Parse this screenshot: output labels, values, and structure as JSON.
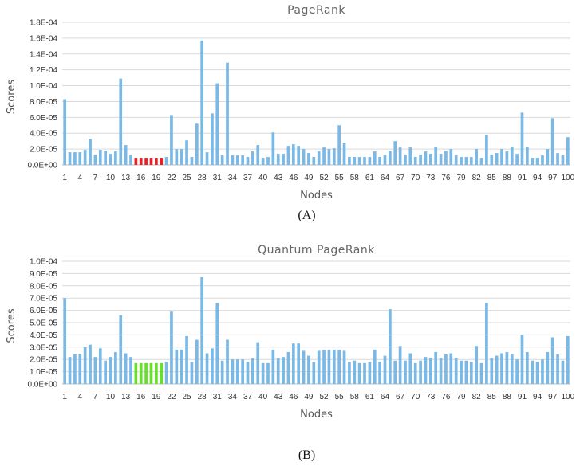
{
  "chart_data": [
    {
      "type": "bar",
      "title": "PageRank",
      "xlabel": "Nodes",
      "ylabel": "Scores",
      "panel_label": "(A)",
      "ylim": [
        0,
        0.00018
      ],
      "yticks": [
        "0.0E+00",
        "2.0E-05",
        "4.0E-05",
        "6.0E-05",
        "8.0E-05",
        "1.0E-04",
        "1.2E-04",
        "1.4E-04",
        "1.6E-04",
        "1.8E-04"
      ],
      "xtick_labels": [
        "1",
        "4",
        "7",
        "10",
        "13",
        "16",
        "19",
        "22",
        "25",
        "28",
        "31",
        "34",
        "37",
        "40",
        "43",
        "46",
        "49",
        "52",
        "55",
        "58",
        "61",
        "64",
        "67",
        "70",
        "73",
        "76",
        "79",
        "82",
        "85",
        "88",
        "91",
        "94",
        "97",
        "100"
      ],
      "grid": true,
      "bar_color": "#7ab8e6",
      "highlight_color": "#e8202a",
      "highlight_nodes": [
        15,
        16,
        17,
        18,
        19,
        20
      ],
      "values": [
        8.3e-05,
        1.6e-05,
        1.6e-05,
        1.6e-05,
        1.9e-05,
        3.3e-05,
        1.3e-05,
        1.9e-05,
        1.8e-05,
        1.4e-05,
        1.7e-05,
        0.000109,
        2.5e-05,
        1.2e-05,
        9e-06,
        9e-06,
        9e-06,
        9e-06,
        9e-06,
        9e-06,
        1e-05,
        6.3e-05,
        2e-05,
        2e-05,
        3.1e-05,
        1e-05,
        5.2e-05,
        0.000157,
        1.6e-05,
        6.5e-05,
        0.000103,
        1.2e-05,
        0.000129,
        1.2e-05,
        1.2e-05,
        1.2e-05,
        1e-05,
        1.7e-05,
        2.5e-05,
        9e-06,
        1e-05,
        4.1e-05,
        1.4e-05,
        1.4e-05,
        2.4e-05,
        2.6e-05,
        2.4e-05,
        2e-05,
        1.5e-05,
        1e-05,
        1.7e-05,
        2.2e-05,
        2e-05,
        2.1e-05,
        5e-05,
        2.8e-05,
        1e-05,
        1e-05,
        1e-05,
        1e-05,
        1e-05,
        1.7e-05,
        1e-05,
        1.3e-05,
        1.8e-05,
        3e-05,
        2.2e-05,
        1.2e-05,
        2.2e-05,
        1e-05,
        1.3e-05,
        1.7e-05,
        1.4e-05,
        2.3e-05,
        1.4e-05,
        1.8e-05,
        2e-05,
        1.2e-05,
        1e-05,
        1e-05,
        1e-05,
        2e-05,
        9e-06,
        3.8e-05,
        1.3e-05,
        1.5e-05,
        2e-05,
        1.7e-05,
        2.3e-05,
        1.4e-05,
        6.6e-05,
        2.3e-05,
        9e-06,
        9e-06,
        1.2e-05,
        2e-05,
        5.9e-05,
        1.5e-05,
        1.2e-05,
        3.5e-05
      ]
    },
    {
      "type": "bar",
      "title": "Quantum PageRank",
      "xlabel": "Nodes",
      "ylabel": "Scores",
      "panel_label": "(B)",
      "ylim": [
        0,
        0.0001
      ],
      "yticks": [
        "0.0E+00",
        "1.0E-05",
        "2.0E-05",
        "3.0E-05",
        "4.0E-05",
        "5.0E-05",
        "6.0E-05",
        "7.0E-05",
        "8.0E-05",
        "9.0E-05",
        "1.0E-04"
      ],
      "xtick_labels": [
        "1",
        "4",
        "7",
        "10",
        "13",
        "16",
        "19",
        "22",
        "25",
        "28",
        "31",
        "34",
        "37",
        "40",
        "43",
        "46",
        "49",
        "52",
        "55",
        "58",
        "61",
        "64",
        "67",
        "70",
        "73",
        "76",
        "79",
        "82",
        "85",
        "88",
        "91",
        "94",
        "97",
        "100"
      ],
      "grid": true,
      "bar_color": "#7ab8e6",
      "highlight_color": "#66e02a",
      "highlight_nodes": [
        15,
        16,
        17,
        18,
        19,
        20
      ],
      "values": [
        7e-05,
        2.2e-05,
        2.4e-05,
        2.4e-05,
        3e-05,
        3.2e-05,
        2.2e-05,
        2.9e-05,
        1.9e-05,
        2.2e-05,
        2.6e-05,
        5.6e-05,
        2.5e-05,
        2.2e-05,
        1.7e-05,
        1.7e-05,
        1.7e-05,
        1.7e-05,
        1.7e-05,
        1.7e-05,
        1.8e-05,
        5.9e-05,
        2.8e-05,
        2.8e-05,
        3.9e-05,
        1.8e-05,
        3.6e-05,
        8.7e-05,
        2.5e-05,
        2.9e-05,
        6.6e-05,
        1.9e-05,
        3.6e-05,
        2e-05,
        2e-05,
        2e-05,
        1.8e-05,
        2.1e-05,
        3.4e-05,
        1.7e-05,
        1.7e-05,
        2.8e-05,
        2.1e-05,
        2.2e-05,
        2.6e-05,
        3.3e-05,
        3.3e-05,
        2.7e-05,
        2.3e-05,
        1.8e-05,
        2.7e-05,
        2.8e-05,
        2.8e-05,
        2.8e-05,
        2.8e-05,
        2.7e-05,
        1.8e-05,
        1.9e-05,
        1.7e-05,
        1.7e-05,
        1.8e-05,
        2.8e-05,
        1.8e-05,
        2.3e-05,
        6.1e-05,
        1.9e-05,
        3.1e-05,
        1.9e-05,
        2.5e-05,
        1.7e-05,
        1.9e-05,
        2.2e-05,
        2.1e-05,
        2.6e-05,
        2.1e-05,
        2.4e-05,
        2.5e-05,
        2.1e-05,
        1.9e-05,
        1.9e-05,
        1.8e-05,
        3.1e-05,
        1.7e-05,
        6.6e-05,
        2.1e-05,
        2.3e-05,
        2.5e-05,
        2.6e-05,
        2.4e-05,
        2e-05,
        4e-05,
        2.6e-05,
        1.9e-05,
        1.8e-05,
        2e-05,
        2.6e-05,
        3.8e-05,
        2.4e-05,
        1.9e-05,
        3.9e-05
      ]
    }
  ]
}
